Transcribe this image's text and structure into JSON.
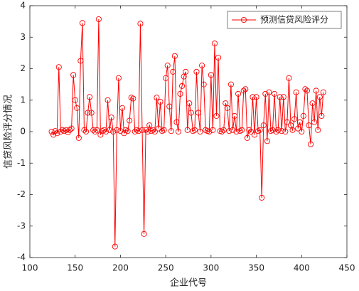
{
  "chart_data": {
    "type": "line",
    "xlabel": "企业代号",
    "ylabel": "信贷风险评分情况",
    "x": [
      124,
      126,
      128,
      130,
      132,
      134,
      136,
      138,
      140,
      142,
      144,
      146,
      148,
      150,
      152,
      154,
      156,
      158,
      160,
      162,
      164,
      166,
      168,
      170,
      172,
      174,
      176,
      178,
      180,
      182,
      184,
      186,
      188,
      190,
      192,
      194,
      196,
      198,
      200,
      202,
      204,
      206,
      208,
      210,
      212,
      214,
      216,
      218,
      220,
      222,
      224,
      226,
      228,
      230,
      232,
      234,
      236,
      238,
      240,
      242,
      244,
      246,
      248,
      250,
      252,
      254,
      256,
      258,
      260,
      262,
      264,
      266,
      268,
      270,
      272,
      274,
      276,
      278,
      280,
      282,
      284,
      286,
      288,
      290,
      292,
      294,
      296,
      298,
      300,
      302,
      304,
      306,
      308,
      310,
      312,
      314,
      316,
      318,
      320,
      322,
      324,
      326,
      328,
      330,
      332,
      334,
      336,
      338,
      340,
      342,
      344,
      346,
      348,
      350,
      352,
      354,
      356,
      358,
      360,
      362,
      364,
      366,
      368,
      370,
      372,
      374,
      376,
      378,
      380,
      382,
      384,
      386,
      388,
      390,
      392,
      394,
      396,
      398,
      400,
      402,
      404,
      406,
      408,
      410,
      412,
      414,
      416,
      418,
      420,
      422,
      424
    ],
    "series": [
      {
        "name": "预测信贷风险评分",
        "color": "#ff0000",
        "values": [
          0.0,
          -0.1,
          0.02,
          -0.05,
          2.05,
          0.0,
          0.05,
          0.02,
          0.05,
          -0.02,
          0.05,
          0.1,
          1.8,
          1.0,
          0.75,
          -0.2,
          2.25,
          3.45,
          0.05,
          0.0,
          0.6,
          1.1,
          0.6,
          0.05,
          0.0,
          0.05,
          3.57,
          -0.1,
          0.02,
          0.05,
          0.0,
          1.0,
          0.05,
          0.45,
          0.0,
          -3.65,
          0.05,
          1.7,
          0.02,
          0.75,
          -0.05,
          0.05,
          0.02,
          0.35,
          1.08,
          1.05,
          0.0,
          0.05,
          0.02,
          3.43,
          0.05,
          -3.25,
          0.05,
          0.0,
          0.2,
          0.02,
          0.05,
          0.0,
          1.08,
          0.1,
          0.95,
          0.02,
          0.05,
          1.7,
          2.1,
          0.8,
          0.02,
          1.9,
          2.4,
          0.3,
          0.0,
          1.2,
          1.45,
          1.75,
          1.9,
          0.05,
          0.9,
          0.6,
          0.02,
          0.05,
          1.9,
          0.6,
          0.0,
          2.1,
          1.5,
          0.05,
          0.02,
          0.0,
          1.8,
          0.05,
          2.8,
          0.5,
          2.35,
          0.02,
          0.0,
          0.05,
          0.9,
          0.75,
          0.02,
          1.5,
          0.05,
          0.5,
          0.0,
          1.2,
          0.02,
          0.05,
          1.3,
          1.35,
          -0.2,
          0.05,
          0.0,
          1.1,
          -0.1,
          1.1,
          0.02,
          0.05,
          -2.1,
          0.2,
          1.2,
          -0.3,
          1.25,
          0.02,
          0.05,
          1.2,
          0.0,
          0.05,
          1.1,
          0.02,
          1.1,
          0.0,
          0.3,
          1.7,
          0.2,
          0.05,
          0.4,
          1.25,
          0.1,
          0.3,
          0.0,
          0.5,
          1.35,
          1.3,
          0.2,
          -0.4,
          0.9,
          0.3,
          1.3,
          0.05,
          1.1,
          0.5,
          1.25
        ]
      }
    ],
    "xlim": [
      100,
      450
    ],
    "xticks": [
      100,
      150,
      200,
      250,
      300,
      350,
      400,
      450
    ],
    "ylim": [
      -4,
      4
    ],
    "yticks": [
      -4,
      -3,
      -2,
      -1,
      0,
      1,
      2,
      3,
      4
    ],
    "grid": false,
    "legend": "northeast"
  }
}
